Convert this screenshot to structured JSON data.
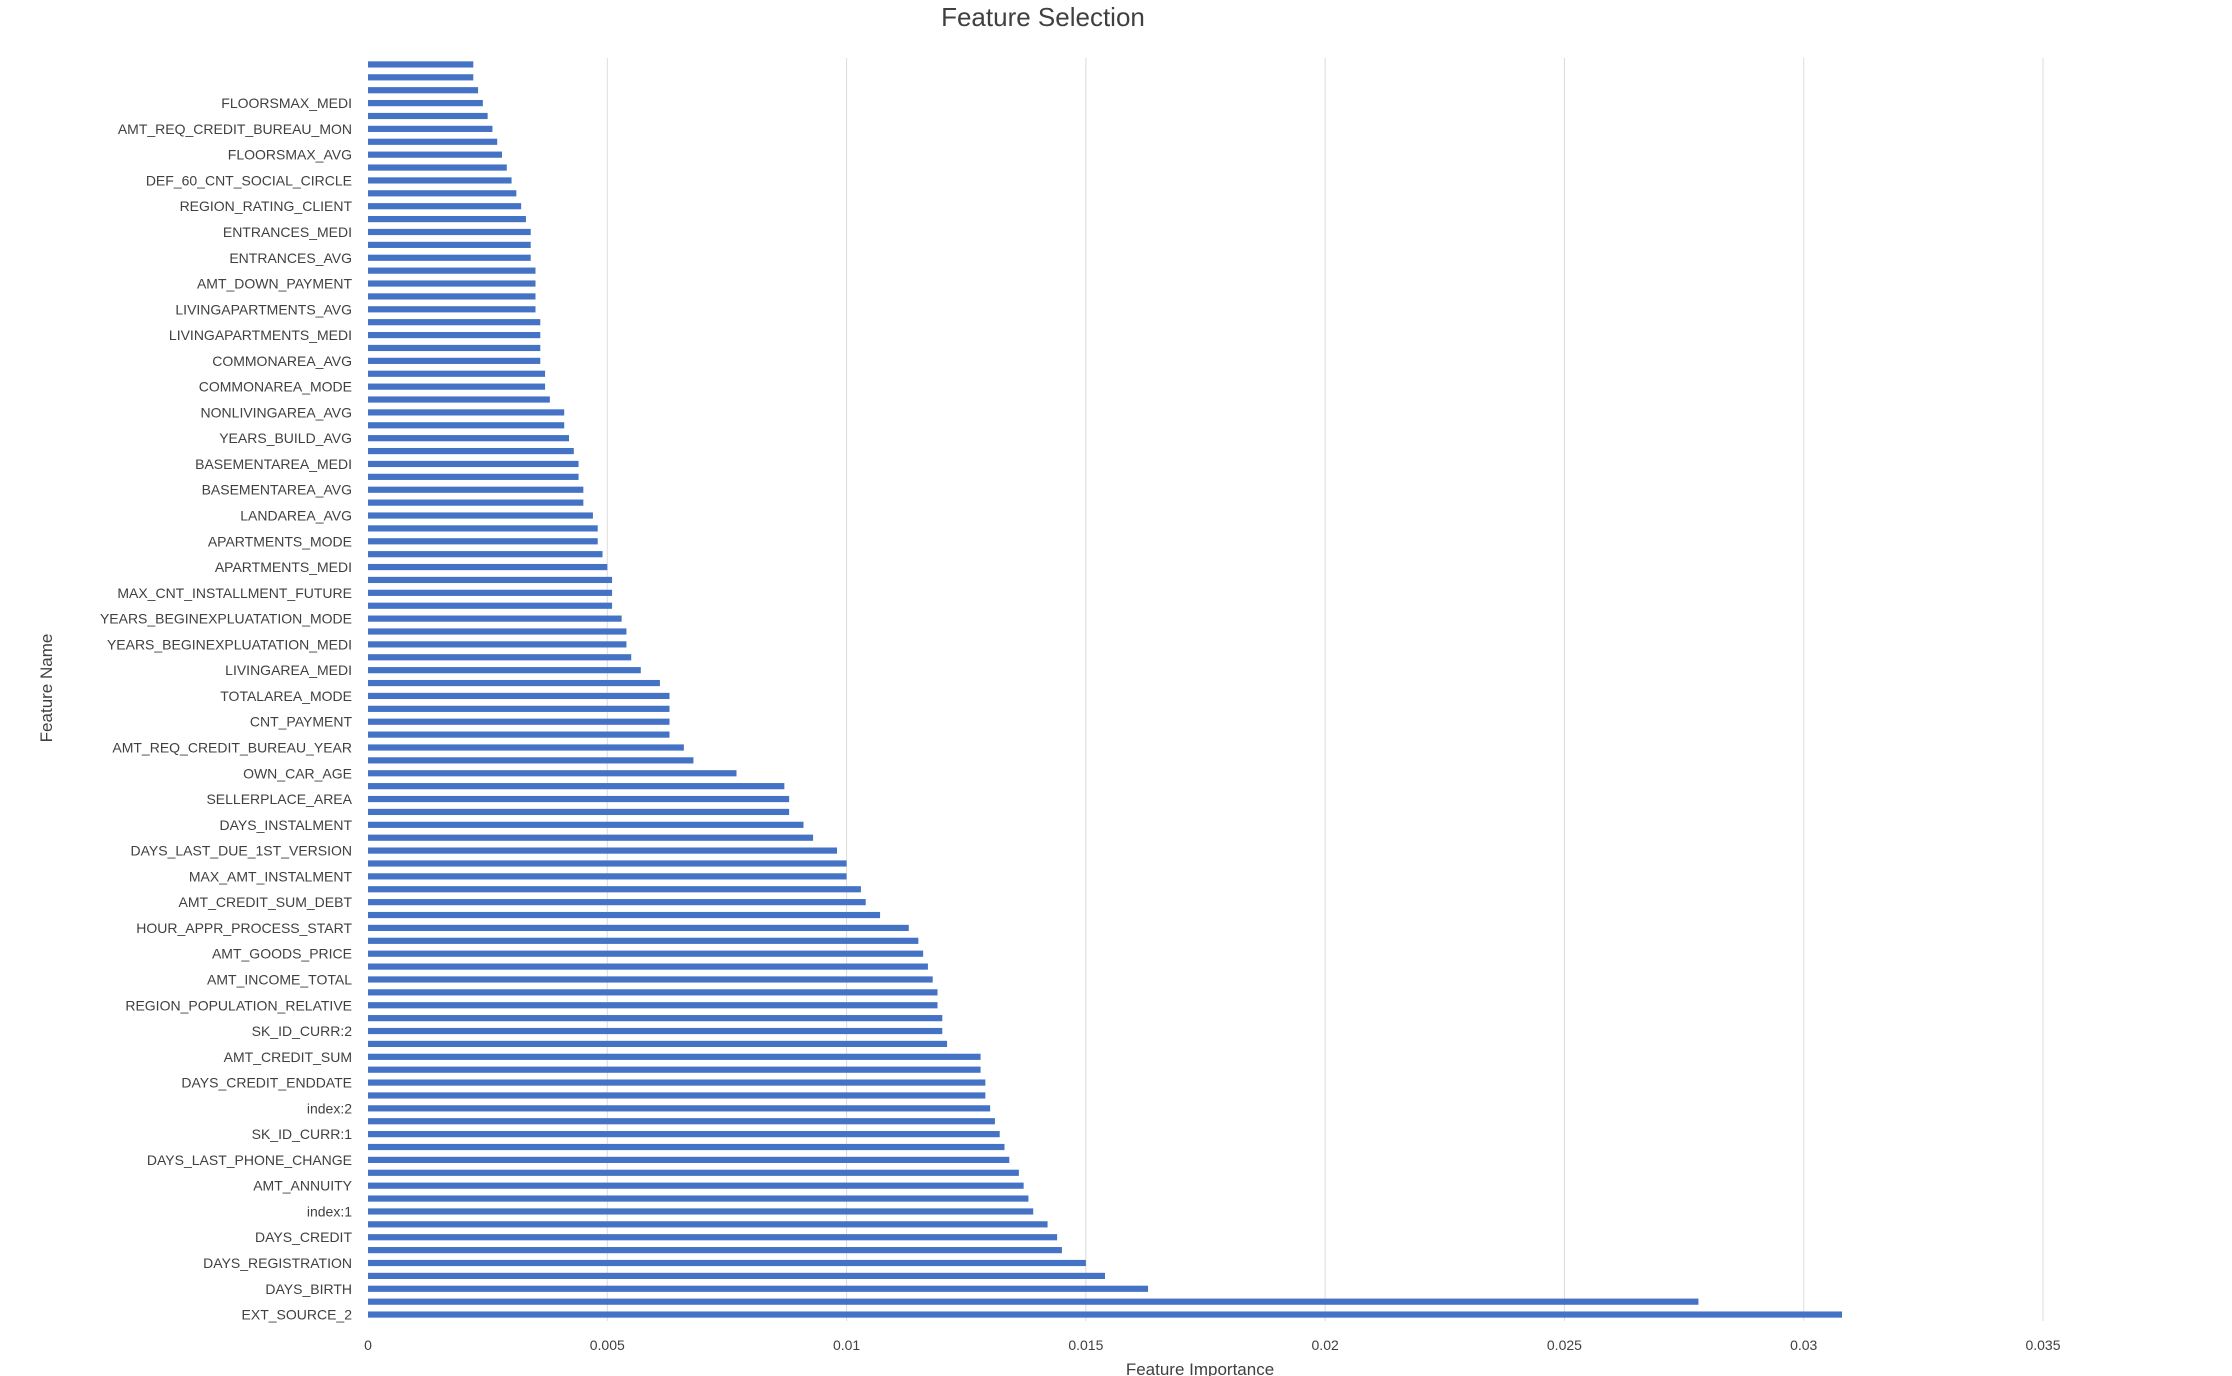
{
  "chart_data": {
    "type": "bar",
    "orientation": "horizontal",
    "title": "Feature Selection",
    "xlabel": "Feature Importance",
    "ylabel": "Feature Name",
    "xlim": [
      0,
      0.035
    ],
    "xticks": [
      "0",
      "0.005",
      "0.01",
      "0.015",
      "0.02",
      "0.025",
      "0.03",
      "0.035"
    ],
    "grid": true,
    "legend": "none",
    "bar_color": "#4472C4",
    "series": [
      {
        "values": [
          0.0308,
          0.0278,
          0.0163,
          0.0154,
          0.015,
          0.0145,
          0.0144,
          0.0142,
          0.0139,
          0.0138,
          0.0137,
          0.0136,
          0.0134,
          0.0133,
          0.0132,
          0.0131,
          0.013,
          0.0129,
          0.0129,
          0.0128,
          0.0128,
          0.0121,
          0.012,
          0.012,
          0.0119,
          0.0119,
          0.0118,
          0.0117,
          0.0116,
          0.0115,
          0.0113,
          0.0107,
          0.0104,
          0.0103,
          0.01,
          0.01,
          0.0098,
          0.0093,
          0.0091,
          0.0088,
          0.0088,
          0.0087,
          0.0077,
          0.0068,
          0.0066,
          0.0063,
          0.0063,
          0.0063,
          0.0063,
          0.0061,
          0.0057,
          0.0055,
          0.0054,
          0.0054,
          0.0053,
          0.0051,
          0.0051,
          0.0051,
          0.005,
          0.0049,
          0.0048,
          0.0048,
          0.0047,
          0.0045,
          0.0045,
          0.0044,
          0.0044,
          0.0043,
          0.0042,
          0.0041,
          0.0041,
          0.0038,
          0.0037,
          0.0037,
          0.0036,
          0.0036,
          0.0036,
          0.0036,
          0.0035,
          0.0035,
          0.0035,
          0.0035,
          0.0034,
          0.0034,
          0.0034,
          0.0033,
          0.0032,
          0.0031,
          0.003,
          0.0029,
          0.0028,
          0.0027,
          0.0026,
          0.0025,
          0.0024,
          0.0023,
          0.0022,
          0.0022
        ]
      }
    ],
    "labeled_categories": [
      "EXT_SOURCE_2",
      "DAYS_BIRTH",
      "DAYS_REGISTRATION",
      "DAYS_CREDIT",
      "index:1",
      "AMT_ANNUITY",
      "DAYS_LAST_PHONE_CHANGE",
      "SK_ID_CURR:1",
      "index:2",
      "DAYS_CREDIT_ENDDATE",
      "AMT_CREDIT_SUM",
      "SK_ID_CURR:2",
      "REGION_POPULATION_RELATIVE",
      "AMT_INCOME_TOTAL",
      "AMT_GOODS_PRICE",
      "HOUR_APPR_PROCESS_START",
      "AMT_CREDIT_SUM_DEBT",
      "MAX_AMT_INSTALMENT",
      "DAYS_LAST_DUE_1ST_VERSION",
      "DAYS_INSTALMENT",
      "SELLERPLACE_AREA",
      "OWN_CAR_AGE",
      "AMT_REQ_CREDIT_BUREAU_YEAR",
      "CNT_PAYMENT",
      "TOTALAREA_MODE",
      "LIVINGAREA_MEDI",
      "YEARS_BEGINEXPLUATATION_MEDI",
      "YEARS_BEGINEXPLUATATION_MODE",
      "MAX_CNT_INSTALLMENT_FUTURE",
      "APARTMENTS_MEDI",
      "APARTMENTS_MODE",
      "LANDAREA_AVG",
      "BASEMENTAREA_AVG",
      "BASEMENTAREA_MEDI",
      "YEARS_BUILD_AVG",
      "NONLIVINGAREA_AVG",
      "COMMONAREA_MODE",
      "COMMONAREA_AVG",
      "LIVINGAPARTMENTS_MEDI",
      "LIVINGAPARTMENTS_AVG",
      "AMT_DOWN_PAYMENT",
      "ENTRANCES_AVG",
      "ENTRANCES_MEDI",
      "REGION_RATING_CLIENT",
      "DEF_60_CNT_SOCIAL_CIRCLE",
      "FLOORSMAX_AVG",
      "AMT_REQ_CREDIT_BUREAU_MON",
      "FLOORSMAX_MEDI"
    ]
  }
}
